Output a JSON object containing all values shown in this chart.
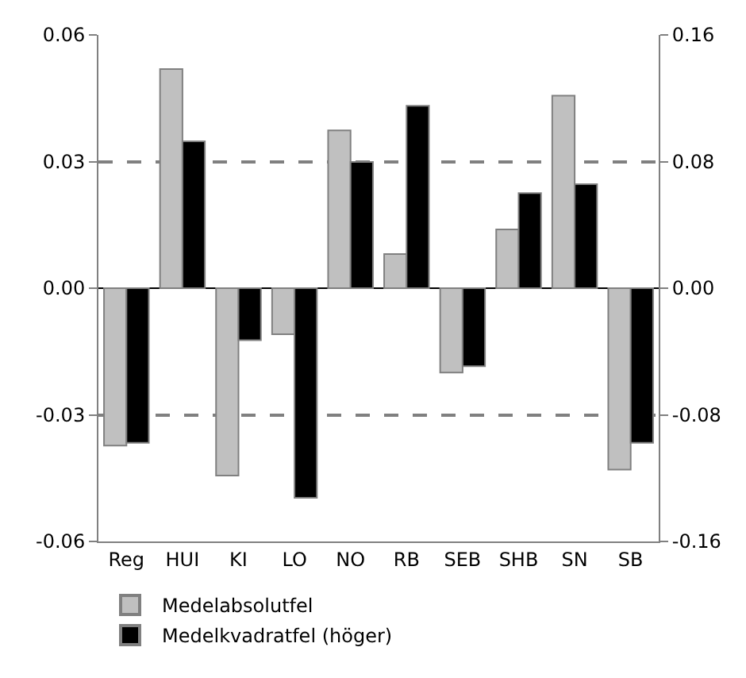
{
  "chart_data": {
    "type": "bar",
    "categories": [
      "Reg",
      "HUI",
      "KI",
      "LO",
      "NO",
      "RB",
      "SEB",
      "SHB",
      "SN",
      "SB"
    ],
    "series": [
      {
        "name": "Medelabsolutfel",
        "color": "#c0c0c0",
        "values": [
          -0.0373,
          0.0519,
          -0.0444,
          -0.0109,
          0.0374,
          0.0081,
          -0.02,
          0.0139,
          0.0456,
          -0.043
        ]
      },
      {
        "name": "Medelkvadratfel (höger)",
        "color": "#000000",
        "axis": "y2",
        "values": [
          -0.0977,
          0.0928,
          -0.0329,
          -0.1324,
          0.0797,
          0.1152,
          -0.0493,
          0.0601,
          0.0657,
          -0.0977
        ]
      }
    ],
    "ylim": [
      -0.06,
      0.06
    ],
    "yticks": [
      {
        "value": -0.06,
        "label": "-0.06"
      },
      {
        "value": -0.03,
        "label": "-0.03"
      },
      {
        "value": 0,
        "label": "0.00"
      },
      {
        "value": 0.03,
        "label": "0.03"
      },
      {
        "value": 0.06,
        "label": "0.06"
      }
    ],
    "y2lim": [
      -0.16,
      0.16
    ],
    "y2ticks": [
      {
        "value": -0.16,
        "label": "-0.16"
      },
      {
        "value": -0.08,
        "label": "-0.08"
      },
      {
        "value": 0,
        "label": "0.00"
      },
      {
        "value": 0.08,
        "label": "0.08"
      },
      {
        "value": 0.16,
        "label": "0.16"
      }
    ],
    "grid": "y",
    "legend": "bottom left"
  }
}
